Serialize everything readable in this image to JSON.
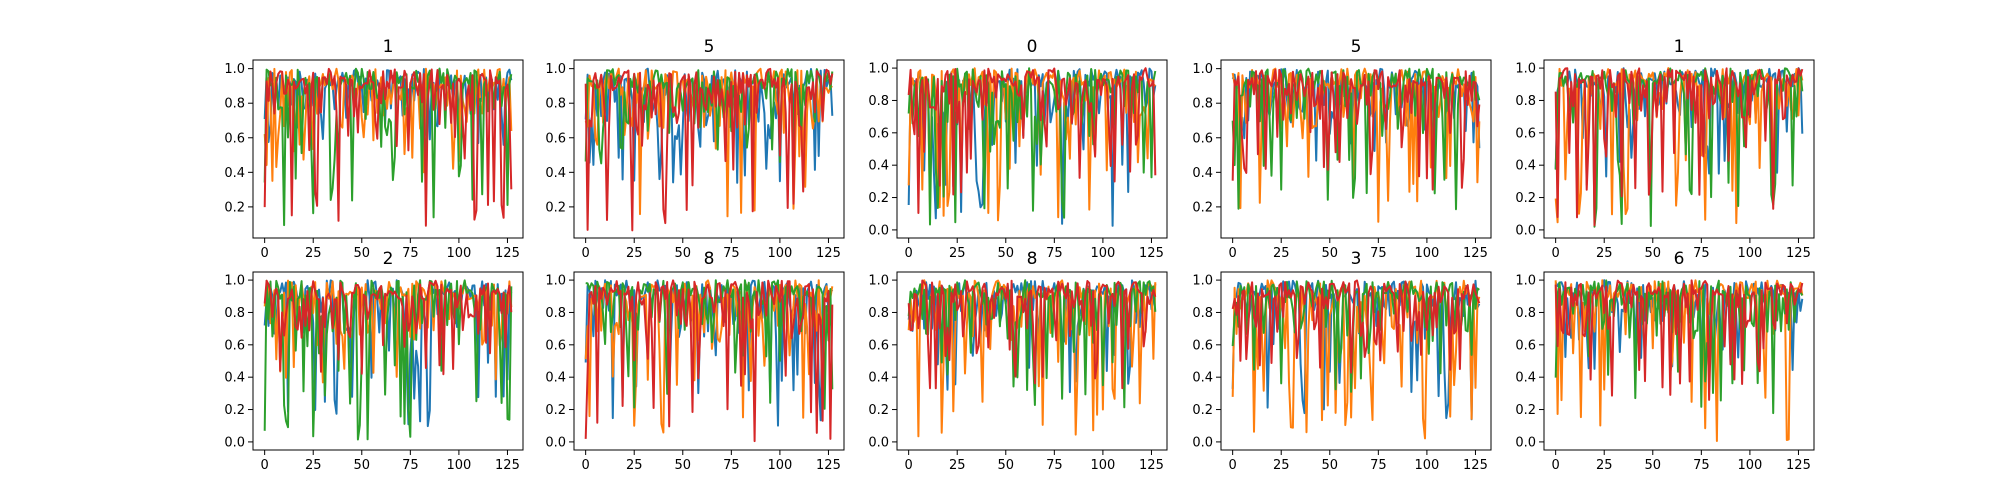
{
  "chart_data": {
    "type": "line",
    "grid": false,
    "colors": [
      "#1f77b4",
      "#ff7f0e",
      "#2ca02c",
      "#d62728"
    ],
    "x_ticks": [
      0,
      25,
      50,
      75,
      100,
      125
    ],
    "x_range": [
      0,
      127
    ],
    "subplots": [
      {
        "title": "1",
        "ylim": [
          0.02,
          1.05
        ],
        "y_ticks": [
          "0.2",
          "0.4",
          "0.6",
          "0.8",
          "1.0"
        ],
        "y_tick_values": [
          0.2,
          0.4,
          0.6,
          0.8,
          1.0
        ],
        "series_min": [
          0.55,
          0.3,
          0.08,
          0.08
        ],
        "seed": 11
      },
      {
        "title": "5",
        "ylim": [
          0.02,
          1.05
        ],
        "y_ticks": [
          "0.2",
          "0.4",
          "0.6",
          "0.8",
          "1.0"
        ],
        "y_tick_values": [
          0.2,
          0.4,
          0.6,
          0.8,
          1.0
        ],
        "series_min": [
          0.32,
          0.1,
          0.45,
          0.06
        ],
        "seed": 23
      },
      {
        "title": "0",
        "ylim": [
          -0.05,
          1.05
        ],
        "y_ticks": [
          "0.0",
          "0.2",
          "0.4",
          "0.6",
          "0.8",
          "1.0"
        ],
        "y_tick_values": [
          0.0,
          0.2,
          0.4,
          0.6,
          0.8,
          1.0
        ],
        "series_min": [
          0.0,
          0.05,
          0.0,
          0.1
        ],
        "seed": 37
      },
      {
        "title": "5",
        "ylim": [
          0.02,
          1.05
        ],
        "y_ticks": [
          "0.2",
          "0.4",
          "0.6",
          "0.8",
          "1.0"
        ],
        "y_tick_values": [
          0.2,
          0.4,
          0.6,
          0.8,
          1.0
        ],
        "series_min": [
          0.45,
          0.08,
          0.18,
          0.3
        ],
        "seed": 41
      },
      {
        "title": "1",
        "ylim": [
          -0.05,
          1.05
        ],
        "y_ticks": [
          "0.0",
          "0.2",
          "0.4",
          "0.6",
          "0.8",
          "1.0"
        ],
        "y_tick_values": [
          0.0,
          0.2,
          0.4,
          0.6,
          0.8,
          1.0
        ],
        "series_min": [
          0.3,
          0.02,
          0.0,
          0.02
        ],
        "seed": 53
      },
      {
        "title": "2",
        "ylim": [
          -0.05,
          1.05
        ],
        "y_ticks": [
          "0.0",
          "0.2",
          "0.4",
          "0.6",
          "0.8",
          "1.0"
        ],
        "y_tick_values": [
          0.0,
          0.2,
          0.4,
          0.6,
          0.8,
          1.0
        ],
        "series_min": [
          0.08,
          0.35,
          0.0,
          0.4
        ],
        "seed": 67
      },
      {
        "title": "8",
        "ylim": [
          -0.05,
          1.05
        ],
        "y_ticks": [
          "0.0",
          "0.2",
          "0.4",
          "0.6",
          "0.8",
          "1.0"
        ],
        "y_tick_values": [
          0.0,
          0.2,
          0.4,
          0.6,
          0.8,
          1.0
        ],
        "series_min": [
          0.1,
          0.05,
          0.0,
          0.0
        ],
        "seed": 71
      },
      {
        "title": "8",
        "ylim": [
          -0.05,
          1.05
        ],
        "y_ticks": [
          "0.0",
          "0.2",
          "0.4",
          "0.6",
          "0.8",
          "1.0"
        ],
        "y_tick_values": [
          0.0,
          0.2,
          0.4,
          0.6,
          0.8,
          1.0
        ],
        "series_min": [
          0.3,
          0.0,
          0.2,
          0.3
        ],
        "seed": 83
      },
      {
        "title": "3",
        "ylim": [
          -0.05,
          1.05
        ],
        "y_ticks": [
          "0.0",
          "0.2",
          "0.4",
          "0.6",
          "0.8",
          "1.0"
        ],
        "y_tick_values": [
          0.0,
          0.2,
          0.4,
          0.6,
          0.8,
          1.0
        ],
        "series_min": [
          0.12,
          0.02,
          0.3,
          0.4
        ],
        "seed": 97
      },
      {
        "title": "6",
        "ylim": [
          -0.05,
          1.05
        ],
        "y_ticks": [
          "0.0",
          "0.2",
          "0.4",
          "0.6",
          "0.8",
          "1.0"
        ],
        "y_tick_values": [
          0.0,
          0.2,
          0.4,
          0.6,
          0.8,
          1.0
        ],
        "series_min": [
          0.4,
          0.0,
          0.1,
          0.25
        ],
        "seed": 101
      }
    ]
  }
}
